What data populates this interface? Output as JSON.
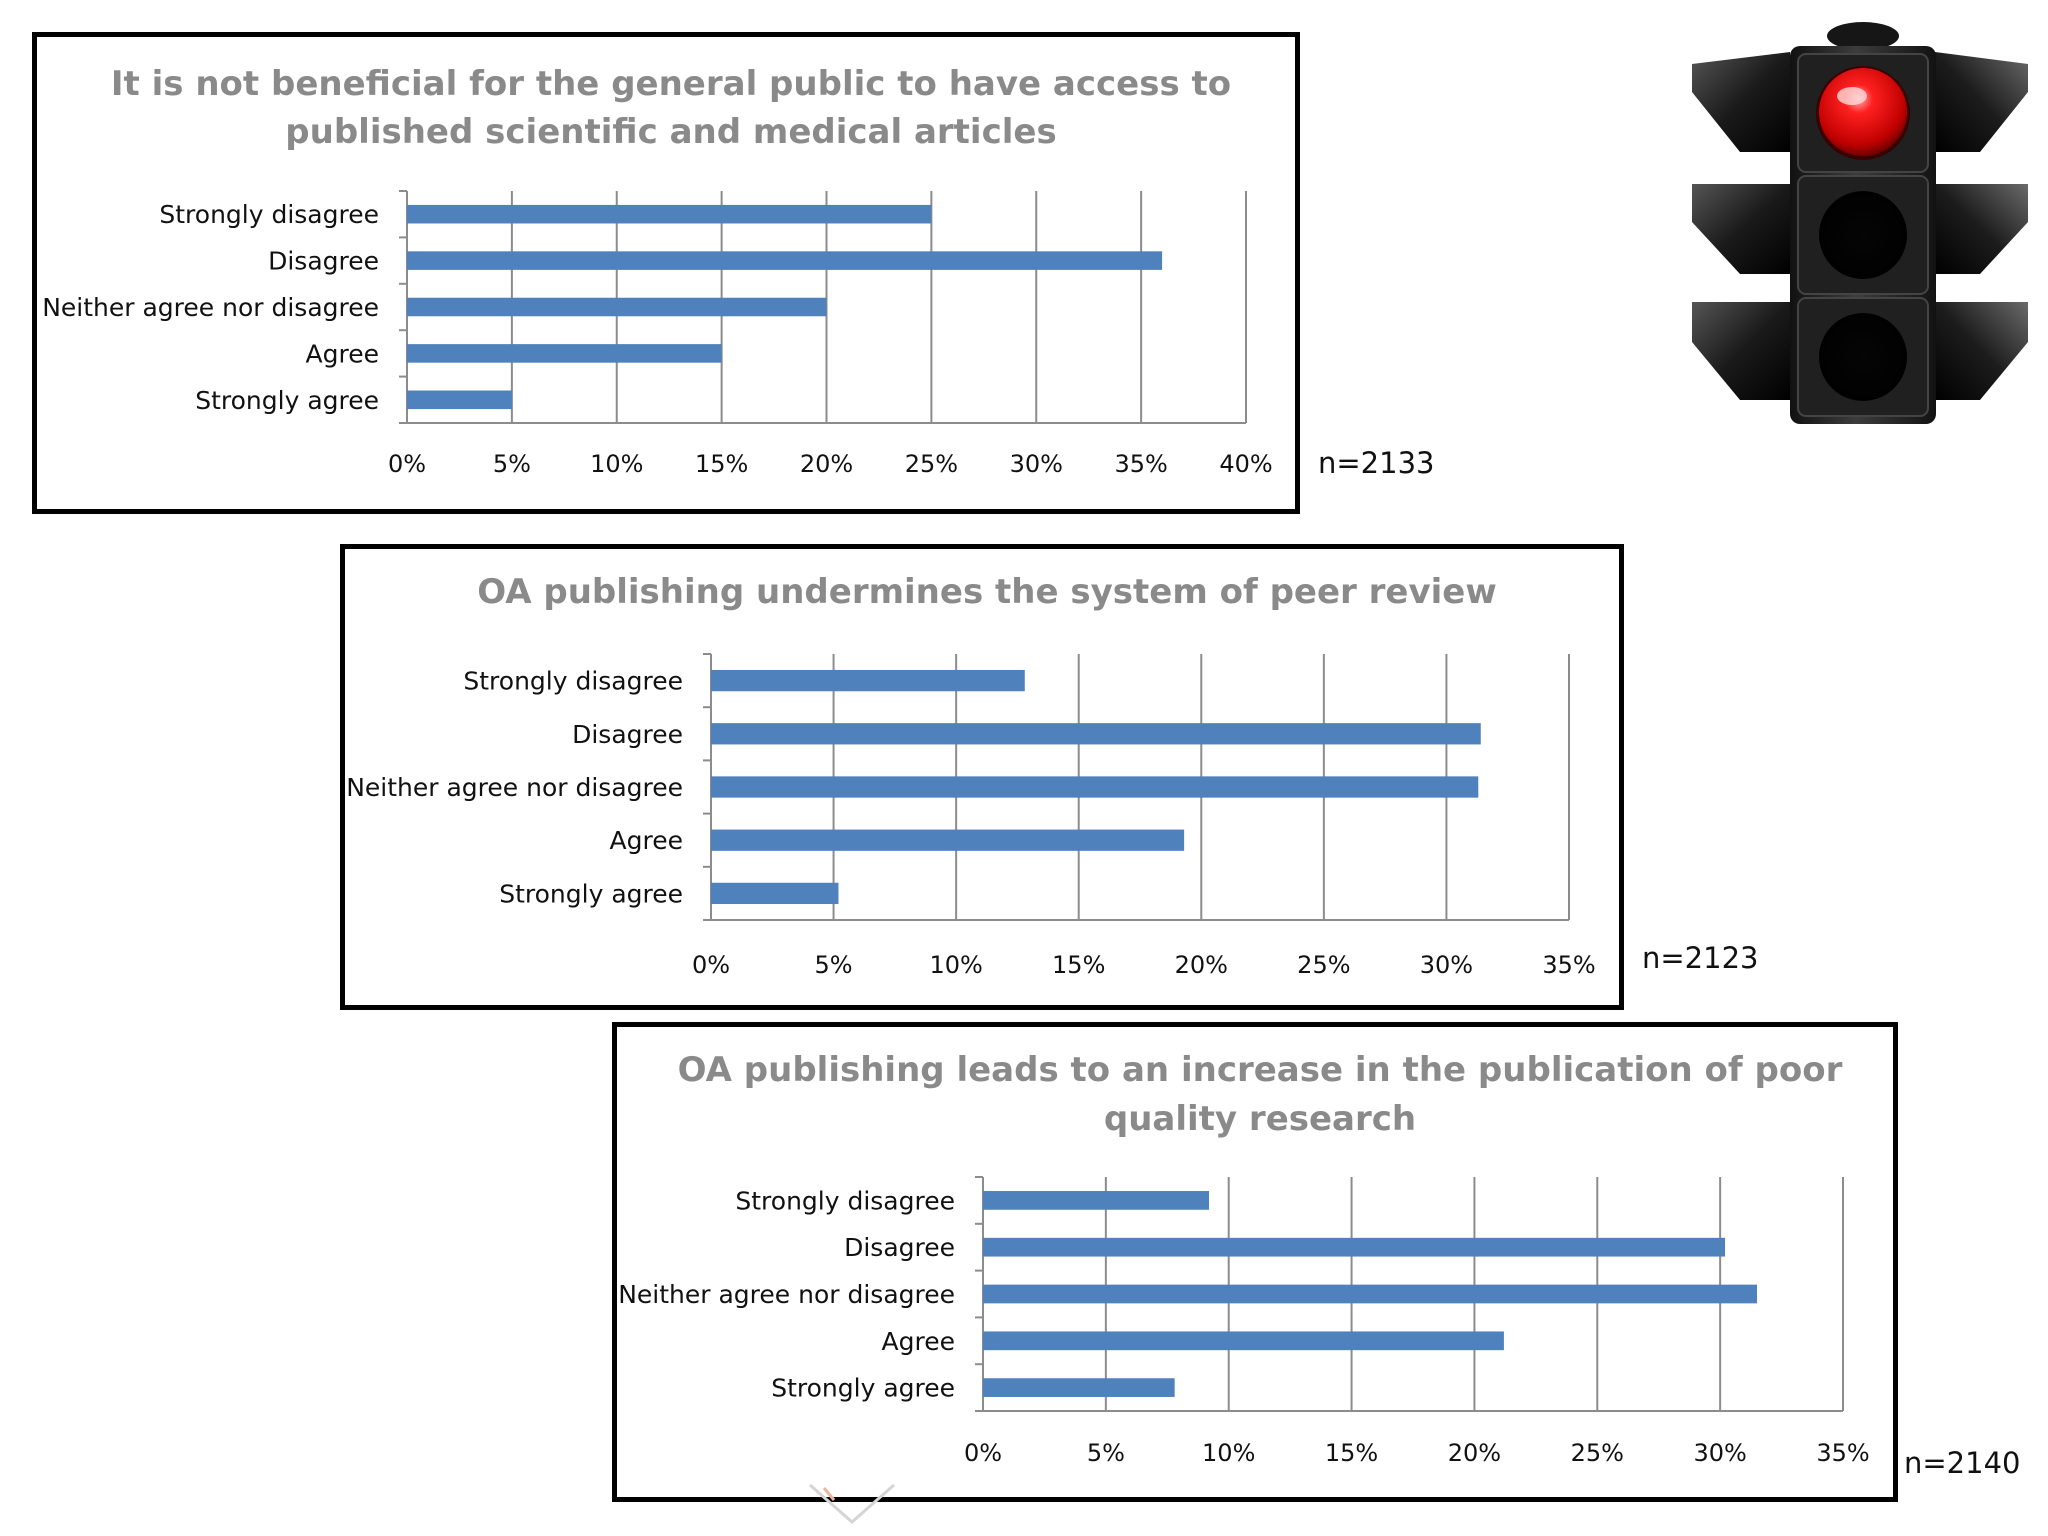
{
  "colors": {
    "bar": "#4f81bd",
    "grid": "#8c8c8c",
    "title": "#8a8a8a",
    "border": "#000000"
  },
  "icons": {
    "traffic_light": "traffic-light-icon",
    "active_lamp": "red"
  },
  "chart_data": [
    {
      "type": "bar",
      "orientation": "horizontal",
      "title": [
        "It is not beneficial for the general public to have access to",
        "published scientific and medical articles"
      ],
      "categories": [
        "Strongly disagree",
        "Disagree",
        "Neither agree nor disagree",
        "Agree",
        "Strongly agree"
      ],
      "values": [
        25,
        36,
        20,
        15,
        5
      ],
      "xlim": [
        0,
        40
      ],
      "xticks": [
        "0%",
        "5%",
        "10%",
        "15%",
        "20%",
        "25%",
        "30%",
        "35%",
        "40%"
      ],
      "grid": true,
      "n_label": "n=2133"
    },
    {
      "type": "bar",
      "orientation": "horizontal",
      "title": [
        "OA publishing undermines the system of peer review"
      ],
      "categories": [
        "Strongly disagree",
        "Disagree",
        "Neither agree nor disagree",
        "Agree",
        "Strongly agree"
      ],
      "values": [
        12.8,
        31.4,
        31.3,
        19.3,
        5.2
      ],
      "xlim": [
        0,
        35
      ],
      "xticks": [
        "0%",
        "5%",
        "10%",
        "15%",
        "20%",
        "25%",
        "30%",
        "35%"
      ],
      "grid": true,
      "n_label": "n=2123"
    },
    {
      "type": "bar",
      "orientation": "horizontal",
      "title": [
        "OA publishing leads to an increase in the publication of poor",
        "quality research"
      ],
      "categories": [
        "Strongly disagree",
        "Disagree",
        "Neither agree nor disagree",
        "Agree",
        "Strongly agree"
      ],
      "values": [
        9.2,
        30.2,
        31.5,
        21.2,
        7.8
      ],
      "xlim": [
        0,
        35
      ],
      "xticks": [
        "0%",
        "5%",
        "10%",
        "15%",
        "20%",
        "25%",
        "30%",
        "35%"
      ],
      "grid": true,
      "n_label": "n=2140"
    }
  ]
}
